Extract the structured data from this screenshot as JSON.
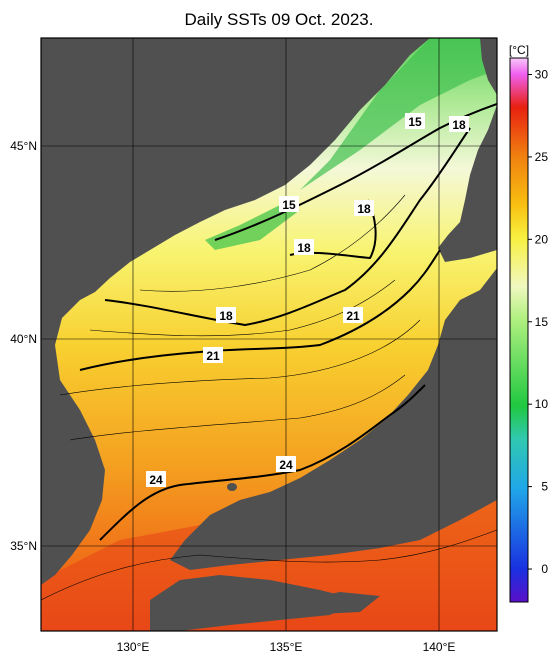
{
  "title": "Daily SSTs 09 Oct. 2023.",
  "colorbar": {
    "unit": "[°C]",
    "min": -2,
    "max": 31,
    "ticks": [
      "0",
      "5",
      "10",
      "15",
      "20",
      "25",
      "30"
    ],
    "colors": {
      "c_min": "#5a10c8",
      "c0": "#1a30e0",
      "c5": "#20a8e8",
      "c8": "#30c8b0",
      "c10": "#20c840",
      "c15": "#b0f080",
      "c17": "#f0f8c0",
      "c20": "#f8f040",
      "c22": "#f8c010",
      "c25": "#f08010",
      "c28": "#e82010",
      "c30": "#f060f0",
      "c31": "#f8c8f8"
    }
  },
  "axes": {
    "lon_labels": [
      "130°E",
      "135°E",
      "140°E"
    ],
    "lat_labels": [
      "45°N",
      "40°N",
      "35°N"
    ]
  },
  "contour_labels": [
    "15",
    "18",
    "15",
    "18",
    "18",
    "18",
    "21",
    "21",
    "24",
    "24"
  ],
  "colors": {
    "land": "#505050",
    "frame": "#000000",
    "grid": "#000000"
  }
}
